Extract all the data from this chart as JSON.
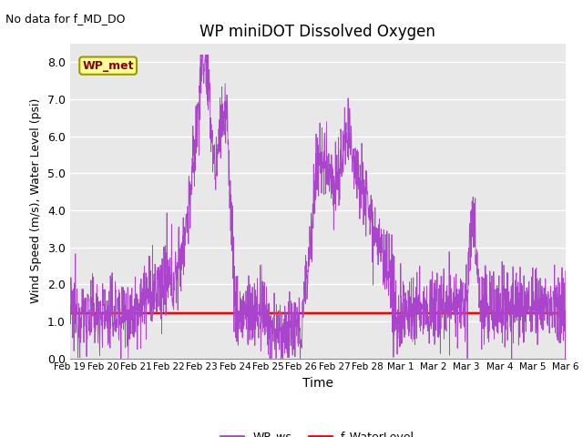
{
  "title": "WP miniDOT Dissolved Oxygen",
  "subtitle": "No data for f_MD_DO",
  "xlabel": "Time",
  "ylabel": "Wind Speed (m/s), Water Level (psi)",
  "ylim": [
    0.0,
    8.5
  ],
  "yticks": [
    0.0,
    1.0,
    2.0,
    3.0,
    4.0,
    5.0,
    6.0,
    7.0,
    8.0
  ],
  "water_level_value": 1.22,
  "wp_ws_color": "#AA44CC",
  "water_level_color": "#FF0000",
  "background_color": "#E8E8E8",
  "legend_label_ws": "WP_ws",
  "legend_label_wl": "f_WaterLevel",
  "inset_label": "WP_met",
  "x_tick_labels": [
    "Feb 19",
    "Feb 20",
    "Feb 21",
    "Feb 22",
    "Feb 23",
    "Feb 24",
    "Feb 25",
    "Feb 26",
    "Feb 27",
    "Feb 28",
    "Mar 1",
    "Mar 2",
    "Mar 3",
    "Mar 4",
    "Mar 5",
    "Mar 6"
  ],
  "num_points": 2000,
  "figsize": [
    6.4,
    4.8
  ],
  "dpi": 100
}
